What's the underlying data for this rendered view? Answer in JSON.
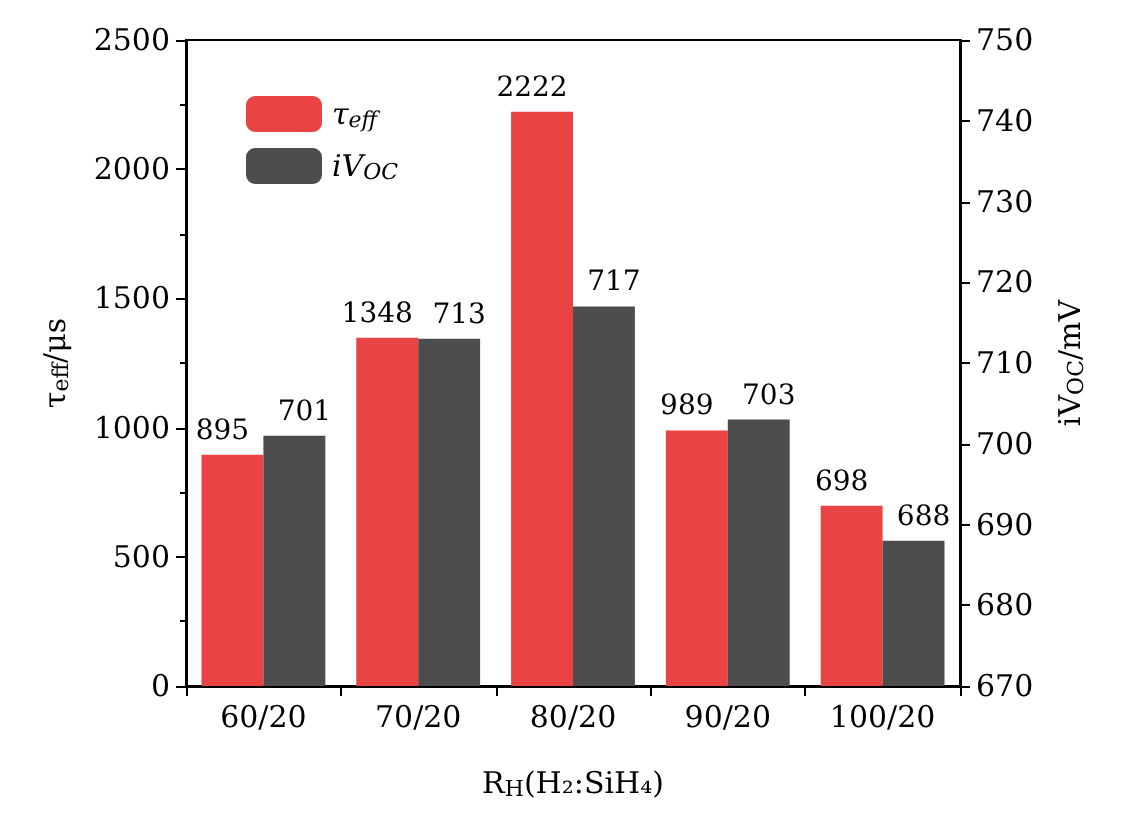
{
  "chart_data": {
    "type": "bar",
    "categories": [
      "60/20",
      "70/20",
      "80/20",
      "90/20",
      "100/20"
    ],
    "xlabel": "R$_{H}$(H₂:SiH₄)",
    "ylabel": "τ$_{eff}$/μs",
    "y2label": "iV$_{OC}$/mV",
    "series": [
      {
        "name": "τ$_{eff}$",
        "color": "#e94343",
        "values": [
          895,
          1348,
          2222,
          989,
          698
        ]
      },
      {
        "name": "iV$_{OC}$",
        "color": "#4d4d4d",
        "values": [
          701,
          713,
          717,
          703,
          688
        ],
        "axis": "y2"
      }
    ],
    "ylim": [
      0,
      2500
    ],
    "yticks": [
      0,
      500,
      1000,
      1500,
      2000,
      2500
    ],
    "y2lim": [
      670,
      750
    ],
    "y2ticks": [
      670,
      680,
      690,
      700,
      710,
      720,
      730,
      740,
      750
    ],
    "data_labels": true,
    "legend": "top left"
  }
}
